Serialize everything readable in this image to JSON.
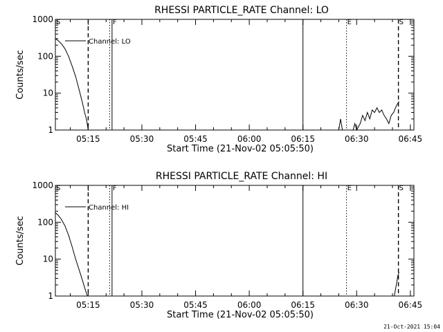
{
  "footer": {
    "timestamp": "21-Oct-2021 15:04"
  },
  "chart_data": [
    {
      "type": "line",
      "title": "RHESSI PARTICLE_RATE Channel: LO",
      "xlabel": "Start Time (21-Nov-02 05:05:50)",
      "ylabel": "Counts/sec",
      "yscale": "log",
      "ylim": [
        1,
        1000
      ],
      "xlim": [
        "05:05:50",
        "06:46:00"
      ],
      "x_ticks": [
        "05:15",
        "05:30",
        "05:45",
        "06:00",
        "06:15",
        "06:30",
        "06:45"
      ],
      "y_ticks": [
        "1",
        "10",
        "100",
        "1000"
      ],
      "legend": {
        "position": "top-left",
        "entries": [
          "Channel: LO"
        ]
      },
      "series": [
        {
          "name": "Channel: LO",
          "points": [
            [
              "05:05:50",
              300
            ],
            [
              "05:06:30",
              270
            ],
            [
              "05:07:30",
              220
            ],
            [
              "05:08:30",
              160
            ],
            [
              "05:09:30",
              100
            ],
            [
              "05:10:30",
              55
            ],
            [
              "05:11:30",
              28
            ],
            [
              "05:12:30",
              12
            ],
            [
              "05:13:30",
              5
            ],
            [
              "05:14:00",
              3
            ],
            [
              "05:14:30",
              2
            ],
            [
              "05:14:50",
              1.3
            ],
            [
              "05:15:00",
              1
            ],
            [
              "06:25:00",
              1
            ],
            [
              "06:25:30",
              2
            ],
            [
              "06:26:00",
              1
            ],
            [
              "06:29:00",
              1
            ],
            [
              "06:29:30",
              1.5
            ],
            [
              "06:30:00",
              1
            ],
            [
              "06:31:00",
              1.5
            ],
            [
              "06:31:40",
              2.5
            ],
            [
              "06:32:20",
              1.8
            ],
            [
              "06:33:00",
              3
            ],
            [
              "06:33:40",
              2
            ],
            [
              "06:34:20",
              3.5
            ],
            [
              "06:35:00",
              3
            ],
            [
              "06:35:40",
              4
            ],
            [
              "06:36:20",
              3
            ],
            [
              "06:37:00",
              3.5
            ],
            [
              "06:37:40",
              2.5
            ],
            [
              "06:38:20",
              2
            ],
            [
              "06:39:00",
              1.5
            ],
            [
              "06:39:40",
              2.5
            ],
            [
              "06:40:20",
              3
            ],
            [
              "06:40:50",
              4
            ],
            [
              "06:41:20",
              5
            ],
            [
              "06:41:50",
              6
            ]
          ]
        }
      ],
      "markers": [
        {
          "label": "S",
          "time": "05:05:50",
          "style": "solid"
        },
        {
          "label": "",
          "time": "05:15:00",
          "style": "dashed"
        },
        {
          "label": "",
          "time": "05:21:00",
          "style": "dotted"
        },
        {
          "label": "F",
          "time": "05:21:40",
          "style": "solid"
        },
        {
          "label": "",
          "time": "06:15:00",
          "style": "solid"
        },
        {
          "label": "E",
          "time": "06:27:10",
          "style": "dotted"
        },
        {
          "label": "S",
          "time": "06:41:40",
          "style": "dashed"
        }
      ]
    },
    {
      "type": "line",
      "title": "RHESSI PARTICLE_RATE Channel: HI",
      "xlabel": "Start Time (21-Nov-02 05:05:50)",
      "ylabel": "Counts/sec",
      "yscale": "log",
      "ylim": [
        1,
        1000
      ],
      "xlim": [
        "05:05:50",
        "06:46:00"
      ],
      "x_ticks": [
        "05:15",
        "05:30",
        "05:45",
        "06:00",
        "06:15",
        "06:30",
        "06:45"
      ],
      "y_ticks": [
        "1",
        "10",
        "100",
        "1000"
      ],
      "legend": {
        "position": "top-left",
        "entries": [
          "Channel: HI"
        ]
      },
      "series": [
        {
          "name": "Channel: HI",
          "points": [
            [
              "05:05:50",
              180
            ],
            [
              "05:06:30",
              160
            ],
            [
              "05:07:30",
              120
            ],
            [
              "05:08:30",
              80
            ],
            [
              "05:09:30",
              45
            ],
            [
              "05:10:30",
              22
            ],
            [
              "05:11:30",
              10
            ],
            [
              "05:12:30",
              5
            ],
            [
              "05:13:30",
              2.5
            ],
            [
              "05:14:00",
              1.7
            ],
            [
              "05:14:30",
              1.2
            ],
            [
              "05:14:50",
              1
            ],
            [
              "06:40:30",
              1
            ],
            [
              "06:40:50",
              1.5
            ],
            [
              "06:41:10",
              2.2
            ],
            [
              "06:41:30",
              3.5
            ],
            [
              "06:41:50",
              4.5
            ]
          ]
        }
      ],
      "markers": [
        {
          "label": "S",
          "time": "05:05:50",
          "style": "solid"
        },
        {
          "label": "",
          "time": "05:15:00",
          "style": "dashed"
        },
        {
          "label": "",
          "time": "05:21:00",
          "style": "dotted"
        },
        {
          "label": "F",
          "time": "05:21:40",
          "style": "solid"
        },
        {
          "label": "",
          "time": "06:15:00",
          "style": "solid"
        },
        {
          "label": "E",
          "time": "06:27:10",
          "style": "dotted"
        },
        {
          "label": "S",
          "time": "06:41:40",
          "style": "dashed"
        }
      ]
    }
  ]
}
